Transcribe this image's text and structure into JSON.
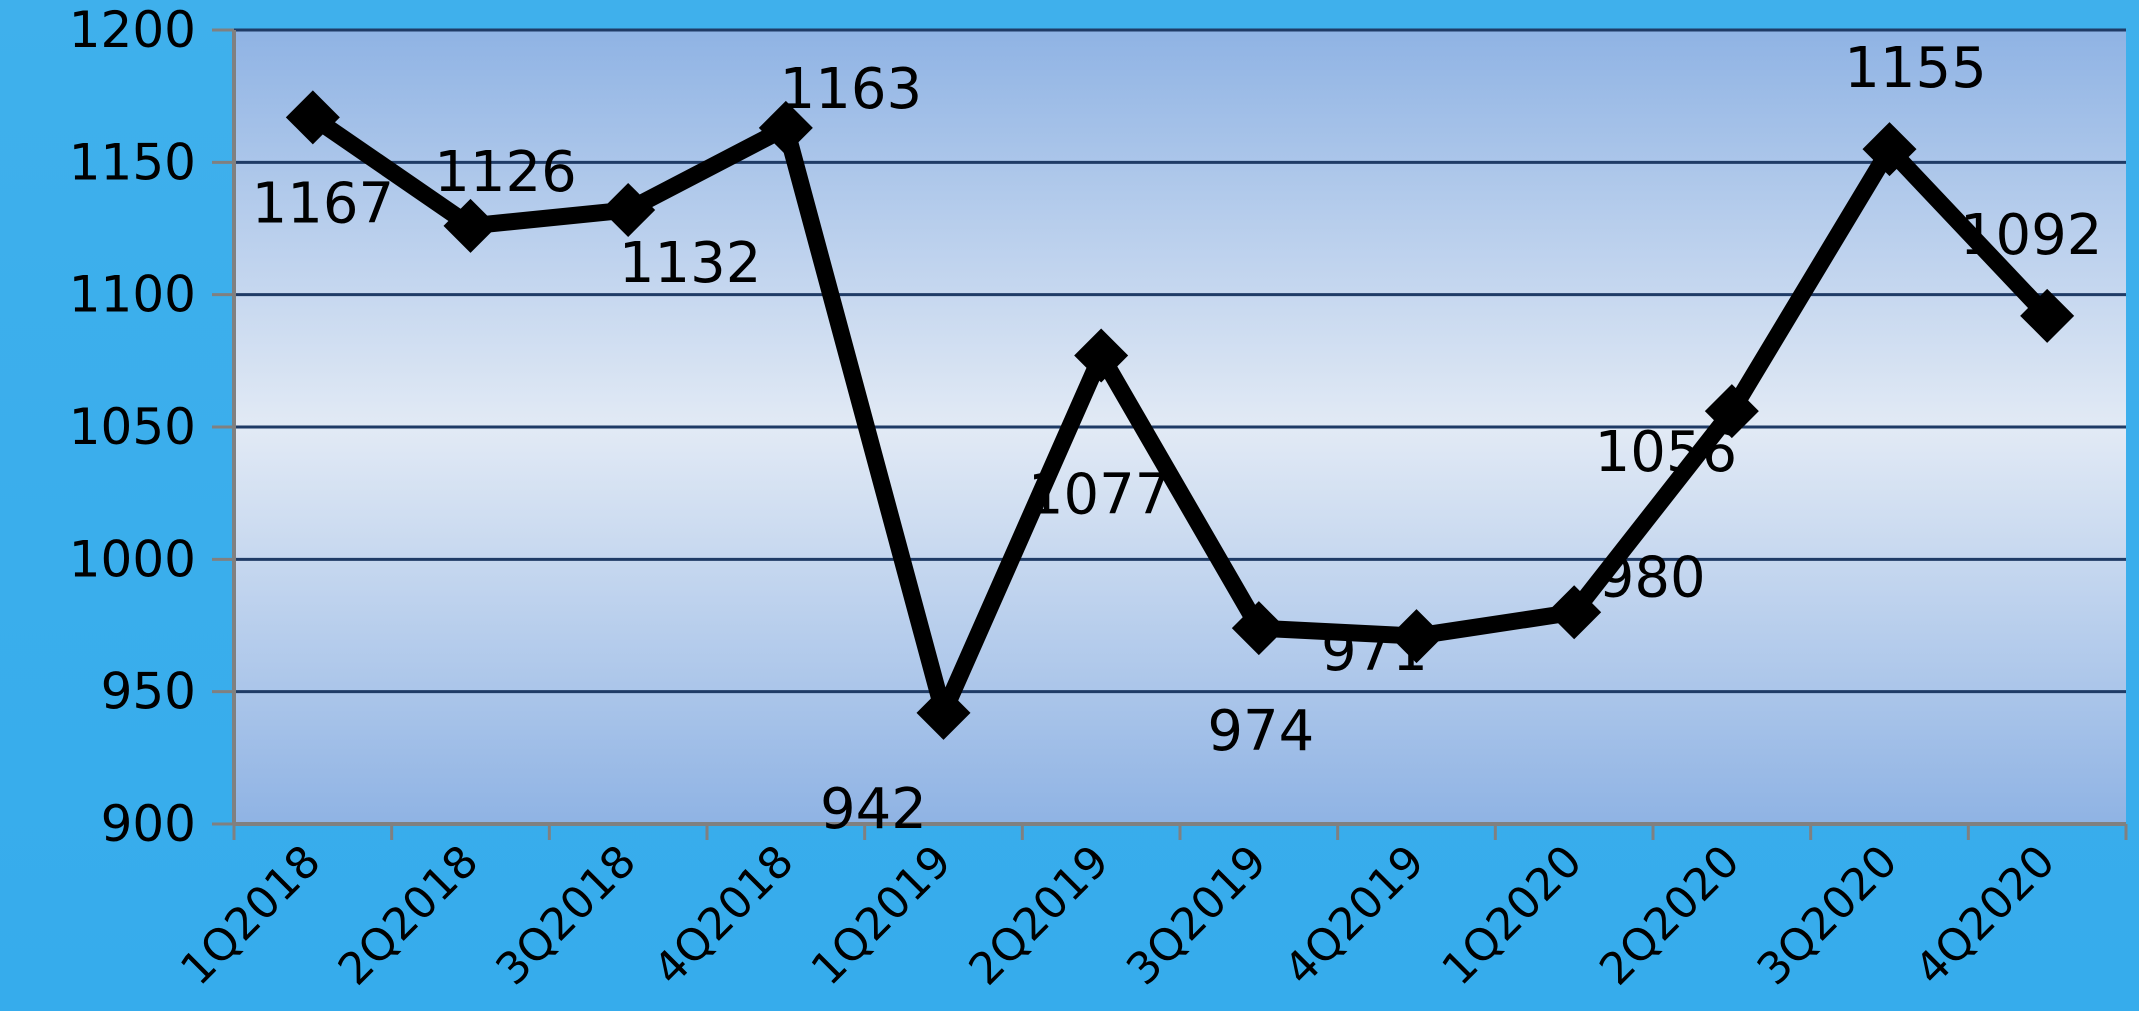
{
  "chart_data": {
    "type": "line",
    "title": "",
    "xlabel": "",
    "ylabel": "",
    "categories": [
      "1Q2018",
      "2Q2018",
      "3Q2018",
      "4Q2018",
      "1Q2019",
      "2Q2019",
      "3Q2019",
      "4Q2019",
      "1Q2020",
      "2Q2020",
      "3Q2020",
      "4Q2020"
    ],
    "series": [
      {
        "values": [
          1167,
          1126,
          1132,
          1163,
          942,
          1077,
          974,
          971,
          980,
          1056,
          1155,
          1092
        ]
      }
    ],
    "data_labels": [
      "1167",
      "1126",
      "1132",
      "1163",
      "942",
      "1077",
      "974",
      "971",
      "980",
      "1056",
      "1155",
      "1092"
    ],
    "ylim": [
      900,
      1200
    ],
    "yticks": [
      900,
      950,
      1000,
      1050,
      1100,
      1150,
      1200
    ],
    "ytick_labels": [
      "900",
      "950",
      "1000",
      "1050",
      "1100",
      "1150",
      "1200"
    ],
    "grid": true,
    "legend": "none",
    "colors": {
      "background": "#3aaeea",
      "plot_top": "#8fb3e4",
      "plot_mid": "#e2eaf5",
      "plot_bottom": "#8fb3e4",
      "gridline": "#1f3b66",
      "axis": "#808080",
      "line": "#000000"
    }
  }
}
